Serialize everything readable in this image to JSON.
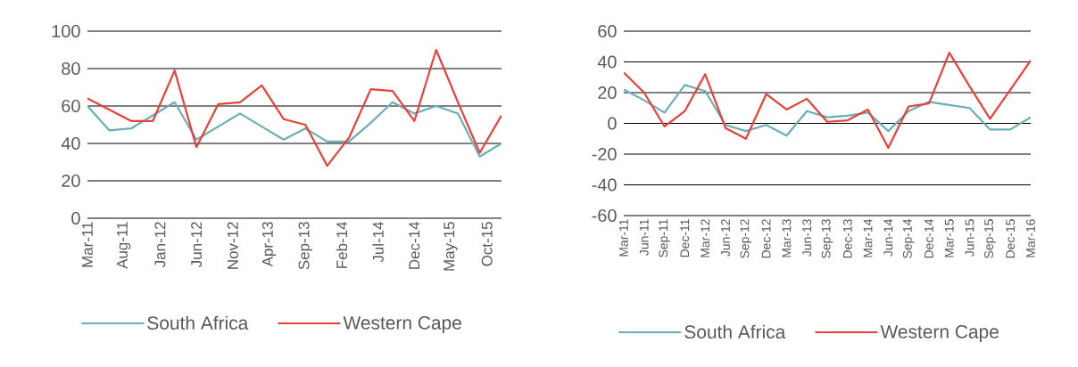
{
  "chart_data": [
    {
      "type": "line",
      "x": [
        "2011-03",
        "2011-06",
        "2011-09",
        "2011-12",
        "2012-03",
        "2012-06",
        "2012-09",
        "2012-12",
        "2013-03",
        "2013-06",
        "2013-09",
        "2013-12",
        "2014-03",
        "2014-06",
        "2014-09",
        "2014-12",
        "2015-03",
        "2015-06",
        "2015-09",
        "2015-12"
      ],
      "xlim": [
        "2011-03",
        "2015-12"
      ],
      "xticks": [
        {
          "value": "2011-03",
          "label": "Mar-11"
        },
        {
          "value": "2011-08",
          "label": "Aug-11"
        },
        {
          "value": "2012-01",
          "label": "Jan-12"
        },
        {
          "value": "2012-06",
          "label": "Jun-12"
        },
        {
          "value": "2012-11",
          "label": "Nov-12"
        },
        {
          "value": "2013-04",
          "label": "Apr-13"
        },
        {
          "value": "2013-09",
          "label": "Sep-13"
        },
        {
          "value": "2014-02",
          "label": "Feb-14"
        },
        {
          "value": "2014-07",
          "label": "Jul-14"
        },
        {
          "value": "2014-12",
          "label": "Dec-14"
        },
        {
          "value": "2015-05",
          "label": "May-15"
        },
        {
          "value": "2015-10",
          "label": "Oct-15"
        }
      ],
      "ylim": [
        0,
        100
      ],
      "yticks": [
        0,
        20,
        40,
        60,
        80,
        100
      ],
      "grid": "y",
      "legend": "bottom",
      "series": [
        {
          "name": "South Africa",
          "color": "#6aafb6",
          "values": [
            60,
            47,
            48,
            55,
            62,
            42,
            49,
            56,
            49,
            42,
            48,
            41,
            41,
            51,
            62,
            56,
            60,
            56,
            33,
            40
          ]
        },
        {
          "name": "Western Cape",
          "color": "#e8413a",
          "values": [
            64,
            58,
            52,
            52,
            79,
            38,
            61,
            62,
            71,
            53,
            50,
            28,
            43,
            69,
            68,
            52,
            90,
            62,
            35,
            55
          ]
        }
      ]
    },
    {
      "type": "line",
      "categories": [
        "Mar-11",
        "Jun-11",
        "Sep-11",
        "Dec-11",
        "Mar-12",
        "Jun-12",
        "Sep-12",
        "Dec-12",
        "Mar-13",
        "Jun-13",
        "Sep-13",
        "Dec-13",
        "Mar-14",
        "Jun-14",
        "Sep-14",
        "Dec-14",
        "Mar-15",
        "Jun-15",
        "Sep-15",
        "Dec-15",
        "Mar-16"
      ],
      "ylim": [
        -60,
        60
      ],
      "yticks": [
        -60,
        -40,
        -20,
        0,
        20,
        40,
        60
      ],
      "grid": "y",
      "legend": "bottom",
      "series": [
        {
          "name": "South Africa",
          "color": "#6aafb6",
          "values": [
            22,
            15,
            7,
            25,
            21,
            -1,
            -5,
            -1,
            -8,
            8,
            4,
            5,
            7,
            -5,
            8,
            14,
            12,
            10,
            -4,
            -4,
            4
          ]
        },
        {
          "name": "Western Cape",
          "color": "#e8413a",
          "values": [
            33,
            20,
            -2,
            8,
            32,
            -3,
            -10,
            19,
            9,
            16,
            1,
            2,
            9,
            -16,
            11,
            13,
            46,
            24,
            3,
            22,
            41
          ]
        }
      ]
    }
  ]
}
